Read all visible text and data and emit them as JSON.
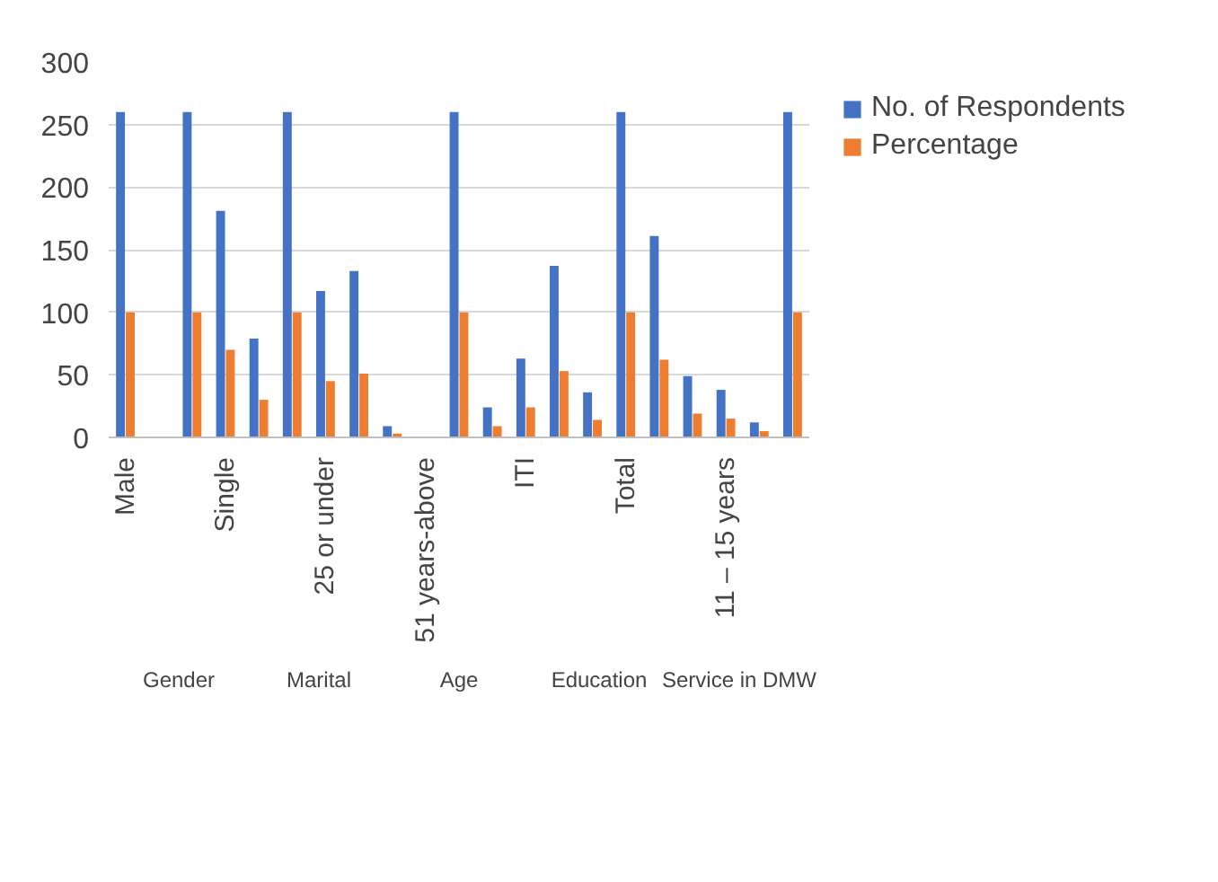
{
  "chart_data": {
    "type": "bar",
    "categories": [
      "Male",
      null,
      null,
      "Single",
      null,
      null,
      "25 or under",
      null,
      null,
      "51 years-above",
      null,
      null,
      "ITI",
      null,
      null,
      "Total",
      null,
      null,
      "11 – 15 years",
      null,
      null
    ],
    "series": [
      {
        "name": "No. of Respondents",
        "color": "#4472c4",
        "values": [
          260,
          0,
          260,
          181,
          79,
          260,
          117,
          133,
          9,
          null,
          260,
          24,
          63,
          137,
          36,
          260,
          161,
          49,
          38,
          12,
          260
        ]
      },
      {
        "name": "Percentage",
        "color": "#ed7d31",
        "values": [
          100,
          0,
          100,
          70,
          30,
          100,
          45,
          51,
          3,
          0,
          100,
          9,
          24,
          53,
          14,
          100,
          62,
          19,
          15,
          5,
          100
        ]
      }
    ],
    "ylim": [
      0,
      300
    ],
    "yticks": [
      0,
      50,
      100,
      150,
      200,
      250,
      300
    ],
    "grid": "y",
    "legend": "right",
    "annotations": [
      "Gender",
      "Marital",
      "Age",
      "Education",
      "Service in DMW"
    ]
  }
}
